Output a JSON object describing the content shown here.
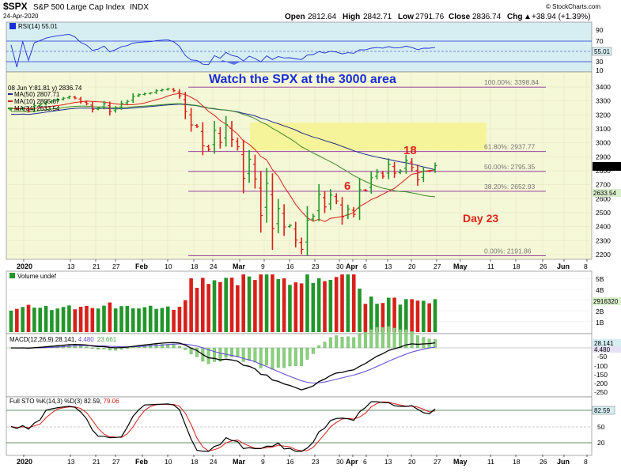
{
  "header": {
    "symbol": "$SPX",
    "name": "S&P 500 Large Cap Index",
    "exchange": "INDX",
    "date": "24-Apr-2020",
    "watermark": "© StockCharts.com",
    "ohlc": {
      "open_label": "Open",
      "open": "2812.64",
      "high_label": "High",
      "high": "2842.71",
      "low_label": "Low",
      "low": "2791.76",
      "close_label": "Close",
      "close": "2836.74",
      "chg_label": "Chg",
      "chg": "+38.94 (+1.39%)",
      "chg_arrow": "▲"
    }
  },
  "panels": {
    "rsi": {
      "label": "RSI(14) 55.01",
      "value_tag": "55.01",
      "ticks": [
        "90",
        "70",
        "50",
        "30",
        "10"
      ]
    },
    "price": {
      "legend_top": "08 Jun Y:81.81 y) 2836.74",
      "legend": [
        {
          "text": "MA(50) 2807.71",
          "color": "#1d2a8a"
        },
        {
          "text": "MA(10) 2805.87",
          "color": "#d8201a"
        },
        {
          "text": "MA(34) 2633.54",
          "color": "#3d8a2a"
        }
      ],
      "ticks": [
        "3400",
        "3300",
        "3200",
        "3100",
        "3000",
        "2900",
        "2800",
        "2700",
        "2600",
        "2500",
        "2400",
        "2300",
        "2200"
      ],
      "last_tag": "2836.74",
      "ma34_tag": "2633.54",
      "fibs": [
        {
          "label": "100.00%: 3398.84",
          "value": 3398.84
        },
        {
          "label": "61.80%: 2937.77",
          "value": 2937.77
        },
        {
          "label": "50.00%: 2795.35",
          "value": 2795.35
        },
        {
          "label": "38.20%: 2652.93",
          "value": 2652.93
        },
        {
          "label": "0.00%: 2191.86",
          "value": 2191.86
        }
      ],
      "annotations": {
        "watch": "Watch the SPX at the 3000 area",
        "eighteen": "18",
        "six": "6",
        "day": "Day 23"
      }
    },
    "volume": {
      "label": "Volume undef",
      "ticks": [
        "5B",
        "4B",
        "3B",
        "2B",
        "1B"
      ],
      "value_tag": "2916320"
    },
    "macd": {
      "label_main": "MACD(12,26,9) 28.141, ",
      "label_signal": "4.480",
      "label_hist": "23.661",
      "ticks": [
        "-50",
        "-100",
        "-150",
        "-200",
        "-250"
      ],
      "tag_macd": "28.141",
      "tag_signal": "4.480"
    },
    "sto": {
      "label_main": "Full STO %K(14,3) %D(3) 82.59, ",
      "label_d": "79.06",
      "ticks": [
        "80",
        "50",
        "20"
      ],
      "tag": "82.59"
    }
  },
  "x_axis": {
    "labels": [
      {
        "t": "2020",
        "x": 30,
        "bold": true
      },
      {
        "t": "13",
        "x": 89
      },
      {
        "t": "21",
        "x": 121
      },
      {
        "t": "27",
        "x": 146
      },
      {
        "t": "Feb",
        "x": 180,
        "bold": true
      },
      {
        "t": "10",
        "x": 212
      },
      {
        "t": "18",
        "x": 245
      },
      {
        "t": "24",
        "x": 269
      },
      {
        "t": "Mar",
        "x": 303,
        "bold": true
      },
      {
        "t": "9",
        "x": 334
      },
      {
        "t": "16",
        "x": 366
      },
      {
        "t": "23",
        "x": 398
      },
      {
        "t": "30",
        "x": 429
      },
      {
        "t": "Apr",
        "x": 446,
        "bold": true
      },
      {
        "t": "6",
        "x": 463
      },
      {
        "t": "13",
        "x": 490
      },
      {
        "t": "20",
        "x": 520
      },
      {
        "t": "27",
        "x": 552
      },
      {
        "t": "May",
        "x": 582,
        "bold": true
      },
      {
        "t": "11",
        "x": 620
      },
      {
        "t": "18",
        "x": 652
      },
      {
        "t": "26",
        "x": 686
      },
      {
        "t": "Jun",
        "x": 713,
        "bold": true
      },
      {
        "t": "8",
        "x": 742
      }
    ]
  },
  "chart_data": {
    "type": "bar",
    "title": "$SPX S&P 500 Large Cap Index INDX",
    "date_range": [
      "2020-01-02",
      "2020-04-24"
    ],
    "price_ylim": [
      2150,
      3450
    ],
    "series": [
      {
        "name": "SPX daily close (approx.)",
        "values": [
          3245,
          3240,
          3250,
          3230,
          3265,
          3275,
          3290,
          3300,
          3310,
          3320,
          3330,
          3320,
          3295,
          3280,
          3240,
          3250,
          3280,
          3225,
          3248,
          3282,
          3297,
          3334,
          3345,
          3352,
          3357,
          3373,
          3380,
          3386,
          3373,
          3337,
          3225,
          3128,
          3116,
          2978,
          2954,
          3090,
          3003,
          3130,
          3023,
          2972,
          2746,
          2882,
          2741,
          2480,
          2711,
          2386,
          2529,
          2398,
          2409,
          2304,
          2237,
          2447,
          2475,
          2630,
          2541,
          2626,
          2584,
          2470,
          2527,
          2488,
          2664,
          2659,
          2750,
          2790,
          2761,
          2846,
          2783,
          2799,
          2875,
          2823,
          2736,
          2798,
          2797,
          2837
        ]
      },
      {
        "name": "MA(50)",
        "last": 2807.71
      },
      {
        "name": "MA(10)",
        "last": 2805.87
      },
      {
        "name": "MA(34)",
        "last": 2633.54
      }
    ],
    "fibonacci": [
      {
        "level": "100.00%",
        "value": 3398.84
      },
      {
        "level": "61.80%",
        "value": 2937.77
      },
      {
        "level": "50.00%",
        "value": 2795.35
      },
      {
        "level": "38.20%",
        "value": 2652.93
      },
      {
        "level": "0.00%",
        "value": 2191.86
      }
    ],
    "highlight_zone": [
      2940,
      3135
    ],
    "indicators": {
      "RSI14": 55.01,
      "MACD": [
        28.141,
        4.48,
        23.661
      ],
      "STO_K": 82.59,
      "STO_D": 79.06
    },
    "colors": {
      "bg": "#f5f8d6",
      "rsi_bg": "#d6eef2",
      "highlight": "#f5f49a",
      "up": "#22962a",
      "down": "#d8201a",
      "ma50": "#1d2a8a",
      "ma10": "#d8201a",
      "ma34": "#3d8a2a"
    }
  }
}
